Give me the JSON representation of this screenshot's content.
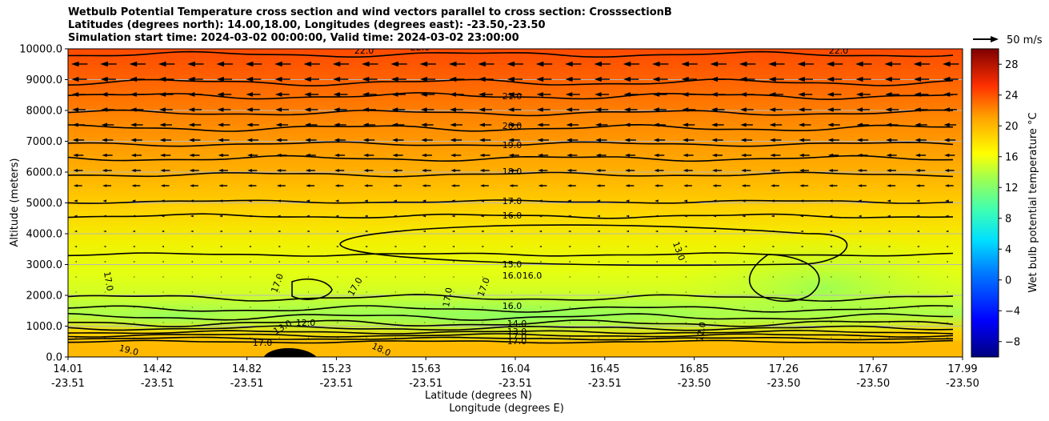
{
  "chart_data": {
    "type": "heatmap",
    "title": "Wetbulb Potential Temperature cross section and wind vectors parallel to cross section: CrosssectionB",
    "subtitle_1": "Latitudes (degrees north): 14.00,18.00, Longitudes (degrees east): -23.50,-23.50",
    "subtitle_2": "Simulation start time: 2024-03-02 00:00:00, Valid time: 2024-03-02 23:00:00",
    "ylabel": "Altitude (meters)",
    "xlabel": "Latitude (degrees N)",
    "xlabel2": "Longitude (degrees E)",
    "ylim": [
      0,
      10000
    ],
    "yticks": [
      "0.0",
      "1000.0",
      "2000.0",
      "3000.0",
      "4000.0",
      "5000.0",
      "6000.0",
      "7000.0",
      "8000.0",
      "9000.0",
      "10000.0"
    ],
    "xticks_lat": [
      "14.01",
      "14.42",
      "14.82",
      "15.23",
      "15.63",
      "16.04",
      "16.45",
      "16.85",
      "17.26",
      "17.67",
      "17.99"
    ],
    "xticks_lon": [
      "-23.51",
      "-23.51",
      "-23.51",
      "-23.51",
      "-23.51",
      "-23.51",
      "-23.51",
      "-23.50",
      "-23.50",
      "-23.50",
      "-23.50"
    ],
    "grid": "horizontal",
    "quiver_key": "50 m/s",
    "colorbar": {
      "label": "Wet bulb potential temperature $^\\circ$C",
      "label_text": "Wet bulb potential temperature °C",
      "range": [
        -10,
        30
      ],
      "ticks": [
        "28",
        "24",
        "20",
        "16",
        "12",
        "8",
        "4",
        "0",
        "−4",
        "−8"
      ],
      "tick_values": [
        28,
        24,
        20,
        16,
        12,
        8,
        4,
        0,
        -4,
        -8
      ]
    },
    "contour_labels": [
      {
        "text": "22.0"
      },
      {
        "text": "22.0"
      },
      {
        "text": "22.0"
      },
      {
        "text": "21.0"
      },
      {
        "text": "20.0"
      },
      {
        "text": "19.0"
      },
      {
        "text": "18.0"
      },
      {
        "text": "17.0"
      },
      {
        "text": "16.0"
      },
      {
        "text": "15.0"
      },
      {
        "text": "16.0"
      },
      {
        "text": "16.0"
      },
      {
        "text": "16.0"
      },
      {
        "text": "17.0"
      },
      {
        "text": "17.0"
      },
      {
        "text": "17.0"
      },
      {
        "text": "17.0"
      },
      {
        "text": "17.0"
      },
      {
        "text": "13.0"
      },
      {
        "text": "12.0"
      },
      {
        "text": "13.0"
      },
      {
        "text": "17.0"
      },
      {
        "text": "19.0"
      },
      {
        "text": "18.0"
      },
      {
        "text": "14.0"
      },
      {
        "text": "13.0"
      },
      {
        "text": "17.0"
      },
      {
        "text": "17.0"
      },
      {
        "text": "12.0"
      }
    ]
  }
}
